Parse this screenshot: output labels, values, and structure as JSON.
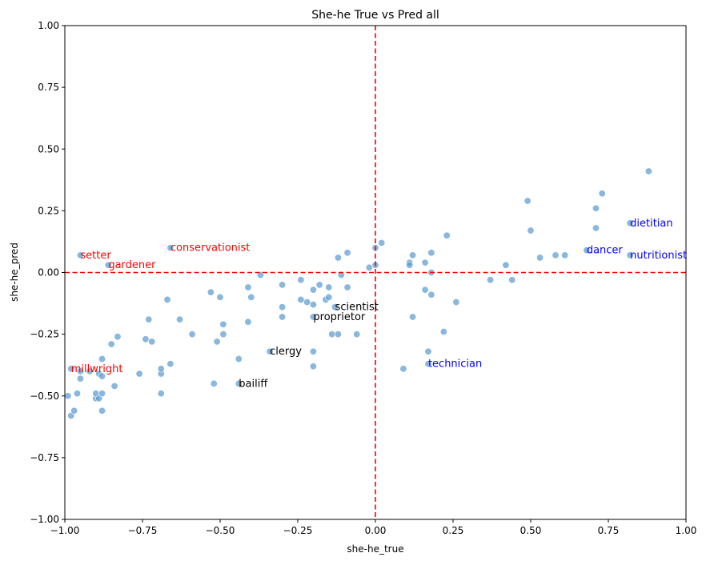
{
  "chart_data": {
    "type": "scatter",
    "title": "She-he True vs Pred all",
    "xlabel": "she-he_true",
    "ylabel": "she-he_pred",
    "xlim": [
      -1.0,
      1.0
    ],
    "ylim": [
      -1.0,
      1.0
    ],
    "xticks": [
      "−1.00",
      "−0.75",
      "−0.50",
      "−0.25",
      "0.00",
      "0.25",
      "0.50",
      "0.75",
      "1.00"
    ],
    "yticks": [
      "−1.00",
      "−0.75",
      "−0.50",
      "−0.25",
      "0.00",
      "0.25",
      "0.50",
      "0.75",
      "1.00"
    ],
    "grid": false,
    "reference_lines": [
      {
        "orientation": "vertical",
        "value": 0.0,
        "style": "dashed",
        "color": "#ff0000"
      },
      {
        "orientation": "horizontal",
        "value": 0.0,
        "style": "dashed",
        "color": "#ff0000"
      }
    ],
    "point_color": "#5b9bd0",
    "points": [
      [
        -0.95,
        0.07
      ],
      [
        -0.86,
        0.03
      ],
      [
        -0.66,
        0.1
      ],
      [
        -0.98,
        -0.39
      ],
      [
        -0.99,
        -0.5
      ],
      [
        -0.98,
        -0.58
      ],
      [
        -0.97,
        -0.56
      ],
      [
        -0.96,
        -0.49
      ],
      [
        -0.95,
        -0.4
      ],
      [
        -0.95,
        -0.43
      ],
      [
        -0.92,
        -0.4
      ],
      [
        -0.9,
        -0.51
      ],
      [
        -0.9,
        -0.49
      ],
      [
        -0.89,
        -0.41
      ],
      [
        -0.89,
        -0.51
      ],
      [
        -0.88,
        -0.42
      ],
      [
        -0.88,
        -0.56
      ],
      [
        -0.88,
        -0.35
      ],
      [
        -0.88,
        -0.49
      ],
      [
        -0.85,
        -0.29
      ],
      [
        -0.84,
        -0.46
      ],
      [
        -0.83,
        -0.26
      ],
      [
        -0.76,
        -0.41
      ],
      [
        -0.74,
        -0.27
      ],
      [
        -0.73,
        -0.19
      ],
      [
        -0.72,
        -0.28
      ],
      [
        -0.69,
        -0.41
      ],
      [
        -0.69,
        -0.39
      ],
      [
        -0.69,
        -0.49
      ],
      [
        -0.67,
        -0.11
      ],
      [
        -0.66,
        -0.37
      ],
      [
        -0.63,
        -0.19
      ],
      [
        -0.59,
        -0.25
      ],
      [
        -0.53,
        -0.08
      ],
      [
        -0.52,
        -0.45
      ],
      [
        -0.51,
        -0.28
      ],
      [
        -0.5,
        -0.1
      ],
      [
        -0.49,
        -0.21
      ],
      [
        -0.49,
        -0.25
      ],
      [
        -0.44,
        -0.35
      ],
      [
        -0.44,
        -0.45
      ],
      [
        -0.41,
        -0.06
      ],
      [
        -0.41,
        -0.2
      ],
      [
        -0.4,
        -0.1
      ],
      [
        -0.37,
        -0.01
      ],
      [
        -0.34,
        -0.32
      ],
      [
        -0.3,
        -0.05
      ],
      [
        -0.3,
        -0.14
      ],
      [
        -0.3,
        -0.18
      ],
      [
        -0.24,
        -0.03
      ],
      [
        -0.24,
        -0.11
      ],
      [
        -0.22,
        -0.12
      ],
      [
        -0.2,
        -0.07
      ],
      [
        -0.2,
        -0.13
      ],
      [
        -0.2,
        -0.18
      ],
      [
        -0.2,
        -0.32
      ],
      [
        -0.2,
        -0.38
      ],
      [
        -0.18,
        -0.05
      ],
      [
        -0.16,
        -0.11
      ],
      [
        -0.15,
        -0.1
      ],
      [
        -0.15,
        -0.06
      ],
      [
        -0.14,
        -0.25
      ],
      [
        -0.13,
        -0.14
      ],
      [
        -0.12,
        0.06
      ],
      [
        -0.12,
        -0.25
      ],
      [
        -0.11,
        -0.01
      ],
      [
        -0.09,
        0.08
      ],
      [
        -0.09,
        -0.06
      ],
      [
        -0.06,
        -0.25
      ],
      [
        -0.02,
        0.02
      ],
      [
        0.0,
        0.1
      ],
      [
        0.0,
        0.03
      ],
      [
        0.02,
        0.12
      ],
      [
        0.09,
        -0.39
      ],
      [
        0.11,
        0.04
      ],
      [
        0.11,
        0.03
      ],
      [
        0.12,
        0.07
      ],
      [
        0.12,
        -0.18
      ],
      [
        0.16,
        -0.07
      ],
      [
        0.16,
        0.04
      ],
      [
        0.17,
        -0.32
      ],
      [
        0.17,
        -0.37
      ],
      [
        0.18,
        0.08
      ],
      [
        0.18,
        -0.09
      ],
      [
        0.18,
        0.0
      ],
      [
        0.22,
        -0.24
      ],
      [
        0.23,
        0.15
      ],
      [
        0.26,
        -0.12
      ],
      [
        0.37,
        -0.03
      ],
      [
        0.42,
        0.03
      ],
      [
        0.44,
        -0.03
      ],
      [
        0.49,
        0.29
      ],
      [
        0.5,
        0.17
      ],
      [
        0.53,
        0.06
      ],
      [
        0.58,
        0.07
      ],
      [
        0.61,
        0.07
      ],
      [
        0.68,
        0.09
      ],
      [
        0.71,
        0.18
      ],
      [
        0.71,
        0.26
      ],
      [
        0.73,
        0.32
      ],
      [
        0.82,
        0.2
      ],
      [
        0.82,
        0.07
      ],
      [
        0.88,
        0.41
      ]
    ],
    "annotations": [
      {
        "text": "setter",
        "x": -0.95,
        "y": 0.07,
        "color": "#ff0000"
      },
      {
        "text": "gardener",
        "x": -0.86,
        "y": 0.03,
        "color": "#ff0000"
      },
      {
        "text": "conservationist",
        "x": -0.66,
        "y": 0.1,
        "color": "#ff0000"
      },
      {
        "text": "millwright",
        "x": -0.98,
        "y": -0.39,
        "color": "#ff0000"
      },
      {
        "text": "bailiff",
        "x": -0.44,
        "y": -0.45,
        "color": "#000000"
      },
      {
        "text": "clergy",
        "x": -0.34,
        "y": -0.32,
        "color": "#000000"
      },
      {
        "text": "proprietor",
        "x": -0.2,
        "y": -0.18,
        "color": "#000000"
      },
      {
        "text": "scientist",
        "x": -0.13,
        "y": -0.14,
        "color": "#000000"
      },
      {
        "text": "technician",
        "x": 0.17,
        "y": -0.37,
        "color": "#0000ff"
      },
      {
        "text": "dancer",
        "x": 0.68,
        "y": 0.09,
        "color": "#0000ff"
      },
      {
        "text": "dietitian",
        "x": 0.82,
        "y": 0.2,
        "color": "#0000ff"
      },
      {
        "text": "nutritionist",
        "x": 0.82,
        "y": 0.07,
        "color": "#0000ff"
      }
    ]
  }
}
